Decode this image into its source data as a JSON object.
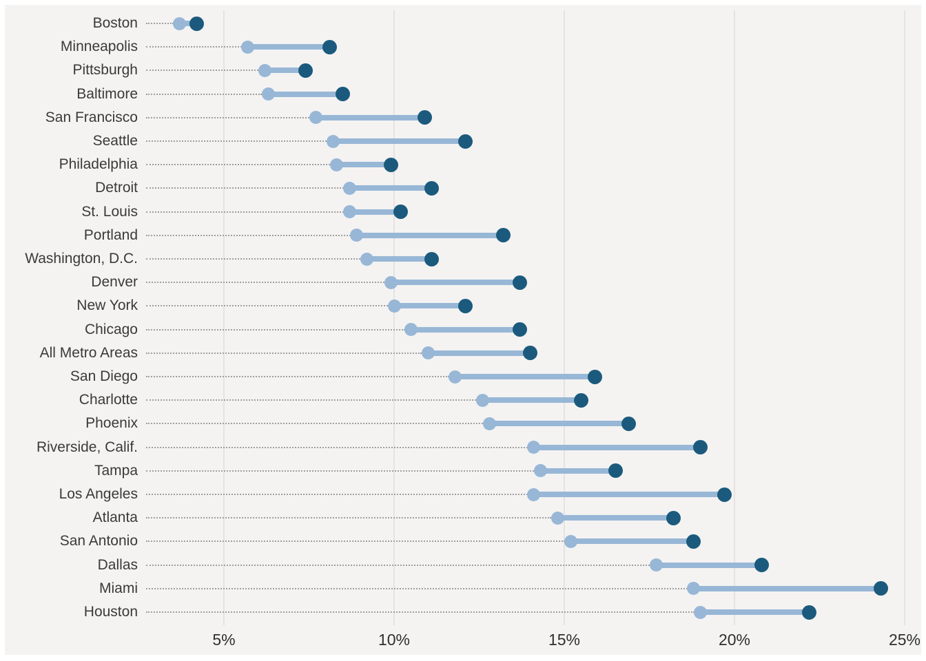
{
  "chart_data": {
    "type": "dumbbell",
    "title": "",
    "orientation": "horizontal",
    "x_axis": {
      "tick_labels": [
        "5%",
        "10%",
        "15%",
        "20%",
        "25%"
      ],
      "tick_values": [
        5,
        10,
        15,
        20,
        25
      ],
      "unit": "percent",
      "range": [
        2.4,
        25.6
      ],
      "grid": true
    },
    "series": [
      {
        "id": "start-value",
        "color": "#98b7d6"
      },
      {
        "id": "end-value",
        "color": "#1b5a7d"
      }
    ],
    "connector_color": "#98b7d6",
    "leader_line_color": "#9e9e9e",
    "background_color": "#f4f3f2",
    "rows": [
      {
        "label": "Boston",
        "start": 3.7,
        "end": 4.2
      },
      {
        "label": "Minneapolis",
        "start": 5.7,
        "end": 8.1
      },
      {
        "label": "Pittsburgh",
        "start": 6.2,
        "end": 7.4
      },
      {
        "label": "Baltimore",
        "start": 6.3,
        "end": 8.5
      },
      {
        "label": "San Francisco",
        "start": 7.7,
        "end": 10.9
      },
      {
        "label": "Seattle",
        "start": 8.2,
        "end": 12.1
      },
      {
        "label": "Philadelphia",
        "start": 8.3,
        "end": 9.9
      },
      {
        "label": "Detroit",
        "start": 8.7,
        "end": 11.1
      },
      {
        "label": "St. Louis",
        "start": 8.7,
        "end": 10.2
      },
      {
        "label": "Portland",
        "start": 8.9,
        "end": 13.2
      },
      {
        "label": "Washington, D.C.",
        "start": 9.2,
        "end": 11.1
      },
      {
        "label": "Denver",
        "start": 9.9,
        "end": 13.7
      },
      {
        "label": "New York",
        "start": 10.0,
        "end": 12.1
      },
      {
        "label": "Chicago",
        "start": 10.5,
        "end": 13.7
      },
      {
        "label": "All Metro Areas",
        "start": 11.0,
        "end": 14.0
      },
      {
        "label": "San Diego",
        "start": 11.8,
        "end": 15.9
      },
      {
        "label": "Charlotte",
        "start": 12.6,
        "end": 15.5
      },
      {
        "label": "Phoenix",
        "start": 12.8,
        "end": 16.9
      },
      {
        "label": "Riverside, Calif.",
        "start": 14.1,
        "end": 19.0
      },
      {
        "label": "Tampa",
        "start": 14.3,
        "end": 16.5
      },
      {
        "label": "Los Angeles",
        "start": 14.1,
        "end": 19.7
      },
      {
        "label": "Atlanta",
        "start": 14.8,
        "end": 18.2
      },
      {
        "label": "San Antonio",
        "start": 15.2,
        "end": 18.8
      },
      {
        "label": "Dallas",
        "start": 17.7,
        "end": 20.8
      },
      {
        "label": "Miami",
        "start": 18.8,
        "end": 24.3
      },
      {
        "label": "Houston",
        "start": 19.0,
        "end": 22.2
      }
    ]
  }
}
